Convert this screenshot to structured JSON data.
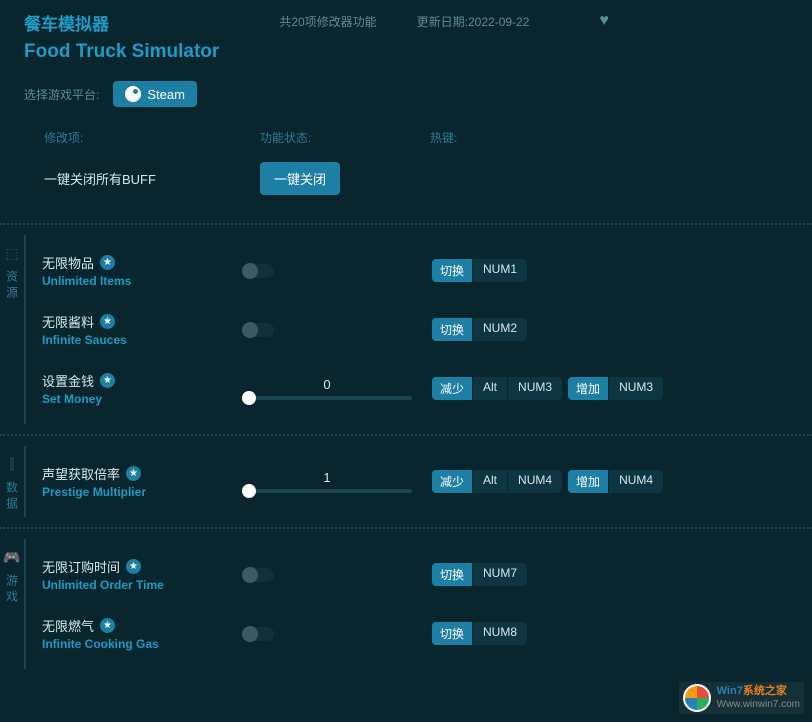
{
  "header": {
    "title_cn": "餐车模拟器",
    "title_en": "Food Truck Simulator",
    "meta_count": "共20项修改器功能",
    "meta_date": "更新日期:2022-09-22"
  },
  "platform": {
    "label": "选择游戏平台:",
    "button": "Steam"
  },
  "columns": {
    "c1": "修改项:",
    "c2": "功能状态:",
    "c3": "热键:"
  },
  "close_all": {
    "label": "一键关闭所有BUFF",
    "button": "一键关闭"
  },
  "sections": [
    {
      "side": "资源",
      "rows": [
        {
          "cn": "无限物品",
          "en": "Unlimited Items",
          "star": true,
          "control": "switch",
          "hotkeys": [
            {
              "label": "切换",
              "keys": [
                "NUM1"
              ]
            }
          ]
        },
        {
          "cn": "无限酱料",
          "en": "Infinite Sauces",
          "star": true,
          "control": "switch",
          "hotkeys": [
            {
              "label": "切换",
              "keys": [
                "NUM2"
              ]
            }
          ]
        },
        {
          "cn": "设置金钱",
          "en": "Set Money",
          "star": true,
          "control": "slider",
          "value": "0",
          "hotkeys": [
            {
              "label": "减少",
              "keys": [
                "Alt",
                "NUM3"
              ]
            },
            {
              "label": "增加",
              "keys": [
                "NUM3"
              ]
            }
          ]
        }
      ]
    },
    {
      "side": "数据",
      "rows": [
        {
          "cn": "声望获取倍率",
          "en": "Prestige Multiplier",
          "star": true,
          "control": "slider",
          "value": "1",
          "hotkeys": [
            {
              "label": "减少",
              "keys": [
                "Alt",
                "NUM4"
              ]
            },
            {
              "label": "增加",
              "keys": [
                "NUM4"
              ]
            }
          ]
        }
      ]
    },
    {
      "side": "游戏",
      "rows": [
        {
          "cn": "无限订购时间",
          "en": "Unlimited Order Time",
          "star": true,
          "control": "switch",
          "hotkeys": [
            {
              "label": "切换",
              "keys": [
                "NUM7"
              ]
            }
          ]
        },
        {
          "cn": "无限燃气",
          "en": "Infinite Cooking Gas",
          "star": true,
          "control": "switch",
          "hotkeys": [
            {
              "label": "切换",
              "keys": [
                "NUM8"
              ]
            }
          ]
        }
      ]
    }
  ],
  "watermark": {
    "line1a": "Win7",
    "line1b": "系统之家",
    "line2": "Www.winwin7.com"
  },
  "side_icons": [
    "⬚",
    "⫿",
    "🎮"
  ]
}
